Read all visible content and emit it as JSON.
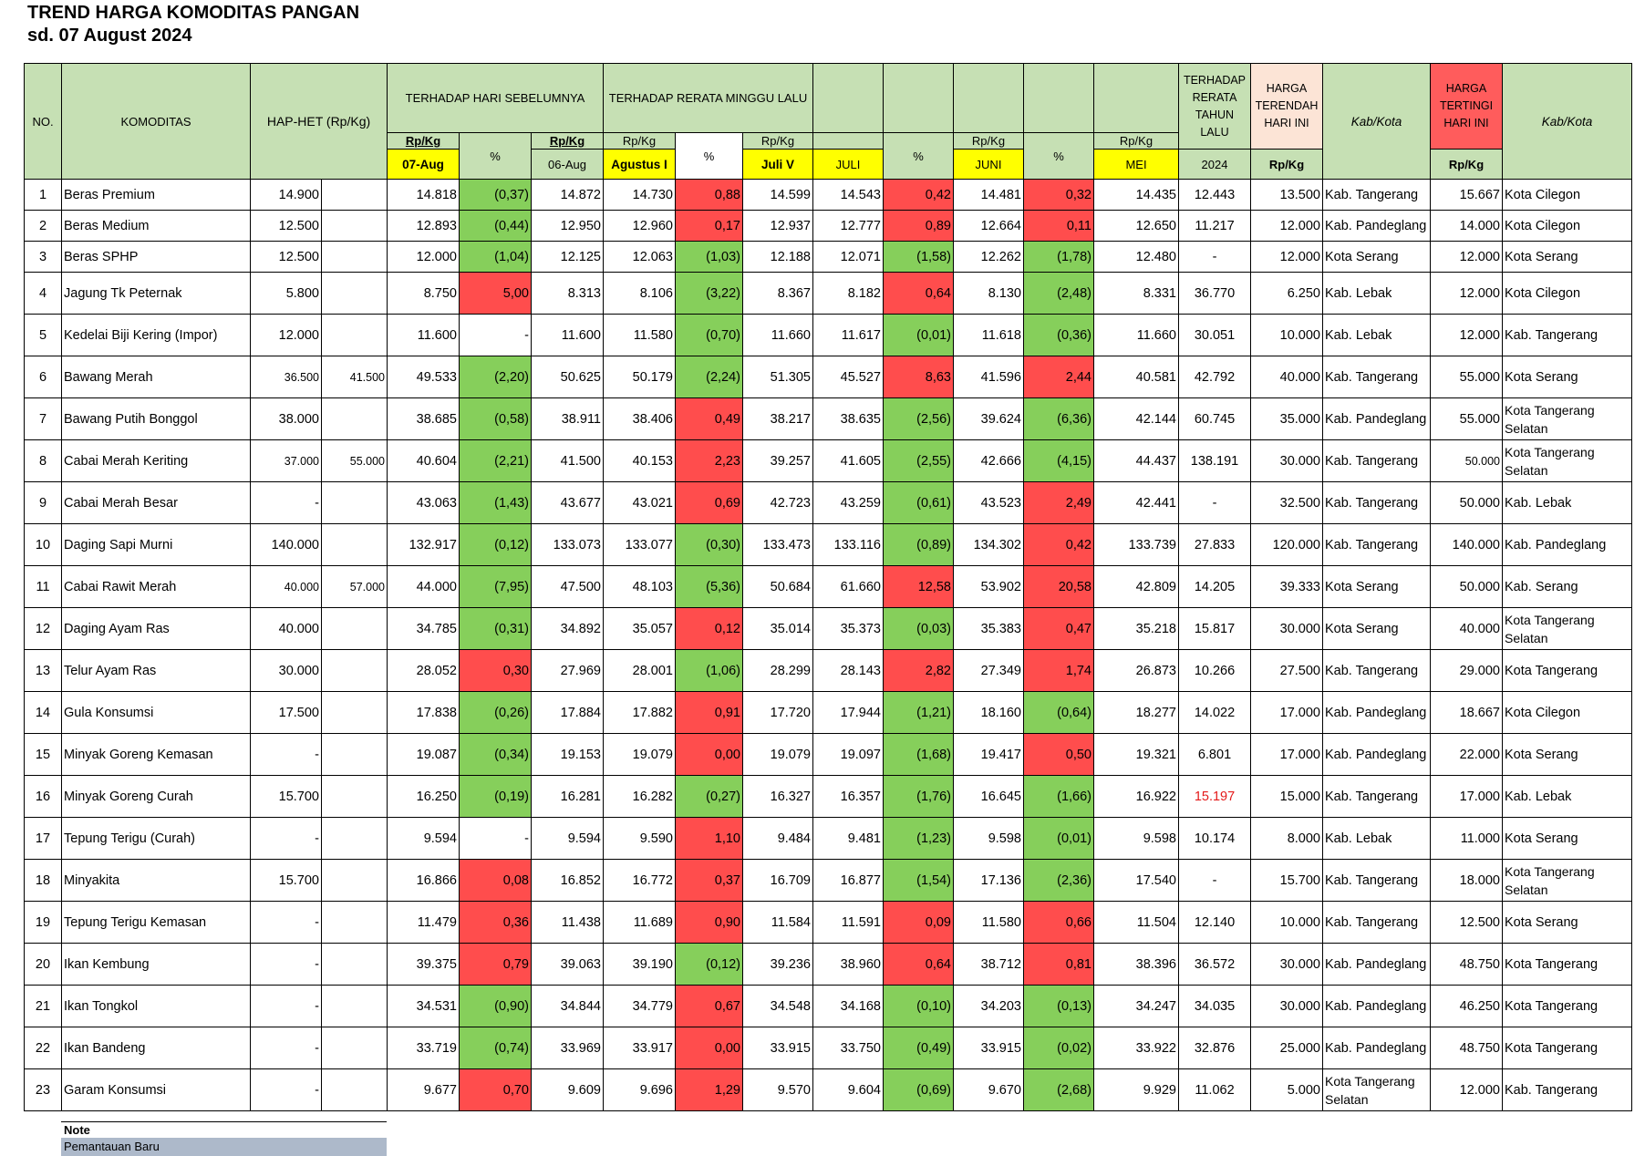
{
  "title": "TREND HARGA KOMODITAS PANGAN",
  "subtitle": "sd.  07 August 2024",
  "headers": {
    "no": "NO.",
    "komoditas": "KOMODITAS",
    "hap": "HAP-HET (Rp/Kg)",
    "hari_sebelumnya": "TERHADAP HARI SEBELUMNYA",
    "minggu_lalu": "TERHADAP RERATA MINGGU LALU",
    "tahun_lalu": "TERHADAP RERATA TAHUN LALU",
    "terendah": "HARGA TERENDAH HARI INI",
    "kabkota1": "Kab/Kota",
    "tertinggi": "HARGA TERTINGI HARI INI",
    "kabkota2": "Kab/Kota",
    "rpkg": "Rp/Kg",
    "pct": "%",
    "d0": "07-Aug",
    "d1": "06-Aug",
    "agustus": "Agustus I",
    "juliv": "Juli V",
    "juli": "JULI",
    "juni": "JUNI",
    "mei": "MEI",
    "year": "2024"
  },
  "rows": [
    {
      "no": "1",
      "name": "Beras Premium",
      "hap": "14.900",
      "het": "",
      "d0": "14.818",
      "p1": "(0,37)",
      "d1": "14.872",
      "aug": "14.730",
      "p2": "0,88",
      "jv": "14.599",
      "jul": "14.543",
      "p3": "0,42",
      "jun": "14.481",
      "p4": "0,32",
      "mei": "14.435",
      "y": "12.443",
      "low": "13.500",
      "lowk": "Kab. Tangerang",
      "high": "15.667",
      "highk": "Kota Cilegon"
    },
    {
      "no": "2",
      "name": "Beras Medium",
      "hap": "12.500",
      "het": "",
      "d0": "12.893",
      "p1": "(0,44)",
      "d1": "12.950",
      "aug": "12.960",
      "p2": "0,17",
      "jv": "12.937",
      "jul": "12.777",
      "p3": "0,89",
      "jun": "12.664",
      "p4": "0,11",
      "mei": "12.650",
      "y": "11.217",
      "low": "12.000",
      "lowk": "Kab. Pandeglang",
      "high": "14.000",
      "highk": "Kota Cilegon"
    },
    {
      "no": "3",
      "name": "Beras SPHP",
      "hap": "12.500",
      "het": "",
      "d0": "12.000",
      "p1": "(1,04)",
      "d1": "12.125",
      "aug": "12.063",
      "p2": "(1,03)",
      "jv": "12.188",
      "jul": "12.071",
      "p3": "(1,58)",
      "jun": "12.262",
      "p4": "(1,78)",
      "mei": "12.480",
      "y": "-",
      "low": "12.000",
      "lowk": "Kota Serang",
      "high": "12.000",
      "highk": "Kota Serang"
    },
    {
      "no": "4",
      "name": "Jagung Tk Peternak",
      "hap": "5.800",
      "het": "",
      "d0": "8.750",
      "p1": "5,00",
      "d1": "8.313",
      "aug": "8.106",
      "p2": "(3,22)",
      "jv": "8.367",
      "jul": "8.182",
      "p3": "0,64",
      "jun": "8.130",
      "p4": "(2,48)",
      "mei": "8.331",
      "y": "36.770",
      "low": "6.250",
      "lowk": "Kab. Lebak",
      "high": "12.000",
      "highk": "Kota Cilegon"
    },
    {
      "no": "5",
      "name": "Kedelai Biji Kering (Impor)",
      "hap": "12.000",
      "het": "",
      "d0": "11.600",
      "p1": "-",
      "d1": "11.600",
      "aug": "11.580",
      "p2": "(0,70)",
      "jv": "11.660",
      "jul": "11.617",
      "p3": "(0,01)",
      "jun": "11.618",
      "p4": "(0,36)",
      "mei": "11.660",
      "y": "30.051",
      "low": "10.000",
      "lowk": "Kab. Lebak",
      "high": "12.000",
      "highk": "Kab. Tangerang"
    },
    {
      "no": "6",
      "name": "Bawang Merah",
      "hap": "36.500",
      "het": "41.500",
      "d0": "49.533",
      "p1": "(2,20)",
      "d1": "50.625",
      "aug": "50.179",
      "p2": "(2,24)",
      "jv": "51.305",
      "jul": "45.527",
      "p3": "8,63",
      "jun": "41.596",
      "p4": "2,44",
      "mei": "40.581",
      "y": "42.792",
      "low": "40.000",
      "lowk": "Kab. Tangerang",
      "high": "55.000",
      "highk": "Kota Serang"
    },
    {
      "no": "7",
      "name": "Bawang Putih Bonggol",
      "hap": "38.000",
      "het": "",
      "d0": "38.685",
      "p1": "(0,58)",
      "d1": "38.911",
      "aug": "38.406",
      "p2": "0,49",
      "jv": "38.217",
      "jul": "38.635",
      "p3": "(2,56)",
      "jun": "39.624",
      "p4": "(6,36)",
      "mei": "42.144",
      "y": "60.745",
      "low": "35.000",
      "lowk": "Kab. Pandeglang",
      "high": "55.000",
      "highk": "Kota Tangerang Selatan"
    },
    {
      "no": "8",
      "name": "Cabai Merah Keriting",
      "hap": "37.000",
      "het": "55.000",
      "d0": "40.604",
      "p1": "(2,21)",
      "d1": "41.500",
      "aug": "40.153",
      "p2": "2,23",
      "jv": "39.257",
      "jul": "41.605",
      "p3": "(2,55)",
      "jun": "42.666",
      "p4": "(4,15)",
      "mei": "44.437",
      "y": "138.191",
      "low": "30.000",
      "lowk": "Kab. Tangerang",
      "high": "50.000",
      "highk": "Kota Tangerang Selatan"
    },
    {
      "no": "9",
      "name": "Cabai Merah Besar",
      "hap": "-",
      "het": "",
      "d0": "43.063",
      "p1": "(1,43)",
      "d1": "43.677",
      "aug": "43.021",
      "p2": "0,69",
      "jv": "42.723",
      "jul": "43.259",
      "p3": "(0,61)",
      "jun": "43.523",
      "p4": "2,49",
      "mei": "42.441",
      "y": "-",
      "low": "32.500",
      "lowk": "Kab. Tangerang",
      "high": "50.000",
      "highk": "Kab. Lebak"
    },
    {
      "no": "10",
      "name": "Daging Sapi Murni",
      "hap": "140.000",
      "het": "",
      "d0": "132.917",
      "p1": "(0,12)",
      "d1": "133.073",
      "aug": "133.077",
      "p2": "(0,30)",
      "jv": "133.473",
      "jul": "133.116",
      "p3": "(0,89)",
      "jun": "134.302",
      "p4": "0,42",
      "mei": "133.739",
      "y": "27.833",
      "low": "120.000",
      "lowk": "Kab. Tangerang",
      "high": "140.000",
      "highk": "Kab. Pandeglang"
    },
    {
      "no": "11",
      "name": "Cabai Rawit Merah",
      "hap": "40.000",
      "het": "57.000",
      "d0": "44.000",
      "p1": "(7,95)",
      "d1": "47.500",
      "aug": "48.103",
      "p2": "(5,36)",
      "jv": "50.684",
      "jul": "61.660",
      "p3": "12,58",
      "jun": "53.902",
      "p4": "20,58",
      "mei": "42.809",
      "y": "14.205",
      "low": "39.333",
      "lowk": "Kota Serang",
      "high": "50.000",
      "highk": "Kab. Serang"
    },
    {
      "no": "12",
      "name": "Daging Ayam Ras",
      "hap": "40.000",
      "het": "",
      "d0": "34.785",
      "p1": "(0,31)",
      "d1": "34.892",
      "aug": "35.057",
      "p2": "0,12",
      "jv": "35.014",
      "jul": "35.373",
      "p3": "(0,03)",
      "jun": "35.383",
      "p4": "0,47",
      "mei": "35.218",
      "y": "15.817",
      "low": "30.000",
      "lowk": "Kota Serang",
      "high": "40.000",
      "highk": "Kota Tangerang Selatan"
    },
    {
      "no": "13",
      "name": "Telur Ayam Ras",
      "hap": "30.000",
      "het": "",
      "d0": "28.052",
      "p1": "0,30",
      "d1": "27.969",
      "aug": "28.001",
      "p2": "(1,06)",
      "jv": "28.299",
      "jul": "28.143",
      "p3": "2,82",
      "jun": "27.349",
      "p4": "1,74",
      "mei": "26.873",
      "y": "10.266",
      "low": "27.500",
      "lowk": "Kab. Tangerang",
      "high": "29.000",
      "highk": "Kota Tangerang"
    },
    {
      "no": "14",
      "name": "Gula Konsumsi",
      "hap": "17.500",
      "het": "",
      "d0": "17.838",
      "p1": "(0,26)",
      "d1": "17.884",
      "aug": "17.882",
      "p2": "0,91",
      "jv": "17.720",
      "jul": "17.944",
      "p3": "(1,21)",
      "jun": "18.160",
      "p4": "(0,64)",
      "mei": "18.277",
      "y": "14.022",
      "low": "17.000",
      "lowk": "Kab. Pandeglang",
      "high": "18.667",
      "highk": "Kota Cilegon"
    },
    {
      "no": "15",
      "name": "Minyak Goreng Kemasan",
      "hap": "-",
      "het": "",
      "d0": "19.087",
      "p1": "(0,34)",
      "d1": "19.153",
      "aug": "19.079",
      "p2": "0,00",
      "jv": "19.079",
      "jul": "19.097",
      "p3": "(1,68)",
      "jun": "19.417",
      "p4": "0,50",
      "mei": "19.321",
      "y": "6.801",
      "low": "17.000",
      "lowk": "Kab. Pandeglang",
      "high": "22.000",
      "highk": "Kota Serang"
    },
    {
      "no": "16",
      "name": "Minyak Goreng Curah",
      "hap": "15.700",
      "het": "",
      "d0": "16.250",
      "p1": "(0,19)",
      "d1": "16.281",
      "aug": "16.282",
      "p2": "(0,27)",
      "jv": "16.327",
      "jul": "16.357",
      "p3": "(1,76)",
      "jun": "16.645",
      "p4": "(1,66)",
      "mei": "16.922",
      "y": "15.197",
      "low": "15.000",
      "lowk": "Kab. Tangerang",
      "high": "17.000",
      "highk": "Kab. Lebak"
    },
    {
      "no": "17",
      "name": "Tepung Terigu (Curah)",
      "hap": "-",
      "het": "",
      "d0": "9.594",
      "p1": "-",
      "d1": "9.594",
      "aug": "9.590",
      "p2": "1,10",
      "jv": "9.484",
      "jul": "9.481",
      "p3": "(1,23)",
      "jun": "9.598",
      "p4": "(0,01)",
      "mei": "9.598",
      "y": "10.174",
      "low": "8.000",
      "lowk": "Kab. Lebak",
      "high": "11.000",
      "highk": "Kota Serang"
    },
    {
      "no": "18",
      "name": "Minyakita",
      "hap": "15.700",
      "het": "",
      "d0": "16.866",
      "p1": "0,08",
      "d1": "16.852",
      "aug": "16.772",
      "p2": "0,37",
      "jv": "16.709",
      "jul": "16.877",
      "p3": "(1,54)",
      "jun": "17.136",
      "p4": "(2,36)",
      "mei": "17.540",
      "y": "-",
      "low": "15.700",
      "lowk": "Kab. Tangerang",
      "high": "18.000",
      "highk": "Kota Tangerang Selatan"
    },
    {
      "no": "19",
      "name": "Tepung Terigu Kemasan",
      "hap": "-",
      "het": "",
      "d0": "11.479",
      "p1": "0,36",
      "d1": "11.438",
      "aug": "11.689",
      "p2": "0,90",
      "jv": "11.584",
      "jul": "11.591",
      "p3": "0,09",
      "jun": "11.580",
      "p4": "0,66",
      "mei": "11.504",
      "y": "12.140",
      "low": "10.000",
      "lowk": "Kab. Tangerang",
      "high": "12.500",
      "highk": "Kota Serang"
    },
    {
      "no": "20",
      "name": "Ikan Kembung",
      "hap": "-",
      "het": "",
      "d0": "39.375",
      "p1": "0,79",
      "d1": "39.063",
      "aug": "39.190",
      "p2": "(0,12)",
      "jv": "39.236",
      "jul": "38.960",
      "p3": "0,64",
      "jun": "38.712",
      "p4": "0,81",
      "mei": "38.396",
      "y": "36.572",
      "low": "30.000",
      "lowk": "Kab. Pandeglang",
      "high": "48.750",
      "highk": "Kota Tangerang"
    },
    {
      "no": "21",
      "name": "Ikan Tongkol",
      "hap": "-",
      "het": "",
      "d0": "34.531",
      "p1": "(0,90)",
      "d1": "34.844",
      "aug": "34.779",
      "p2": "0,67",
      "jv": "34.548",
      "jul": "34.168",
      "p3": "(0,10)",
      "jun": "34.203",
      "p4": "(0,13)",
      "mei": "34.247",
      "y": "34.035",
      "low": "30.000",
      "lowk": "Kab. Pandeglang",
      "high": "46.250",
      "highk": "Kota Tangerang"
    },
    {
      "no": "22",
      "name": "Ikan Bandeng",
      "hap": "-",
      "het": "",
      "d0": "33.719",
      "p1": "(0,74)",
      "d1": "33.969",
      "aug": "33.917",
      "p2": "0,00",
      "jv": "33.915",
      "jul": "33.750",
      "p3": "(0,49)",
      "jun": "33.915",
      "p4": "(0,02)",
      "mei": "33.922",
      "y": "32.876",
      "low": "25.000",
      "lowk": "Kab. Pandeglang",
      "high": "48.750",
      "highk": "Kota Tangerang"
    },
    {
      "no": "23",
      "name": "Garam Konsumsi",
      "hap": "-",
      "het": "",
      "d0": "9.677",
      "p1": "0,70",
      "d1": "9.609",
      "aug": "9.696",
      "p2": "1,29",
      "jv": "9.570",
      "jul": "9.604",
      "p3": "(0,69)",
      "jun": "9.670",
      "p4": "(2,68)",
      "mei": "9.929",
      "y": "11.062",
      "low": "5.000",
      "lowk": "Kota Tangerang Selatan",
      "high": "12.000",
      "highk": "Kab. Tangerang"
    }
  ],
  "note": {
    "label": "Note",
    "new_monitoring": "Pemantauan Baru"
  }
}
